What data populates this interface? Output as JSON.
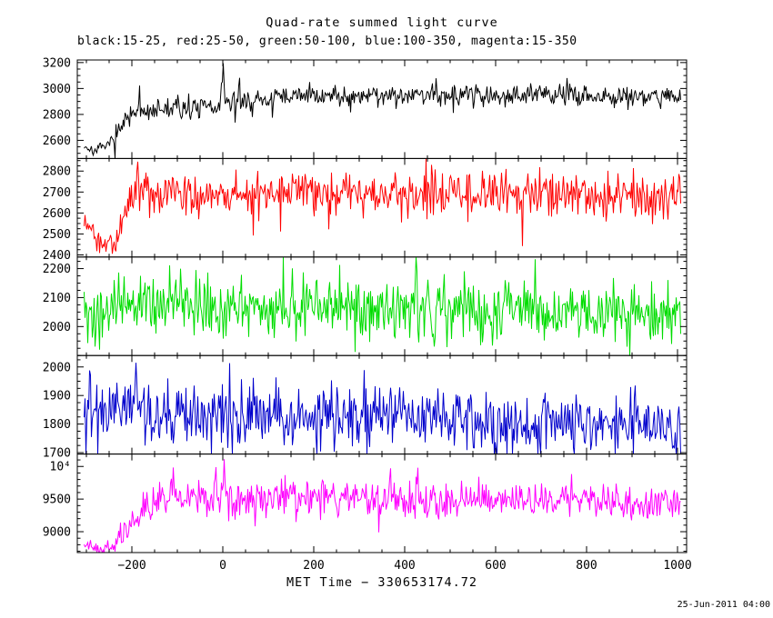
{
  "footer": {
    "timestamp": "25-Jun-2011 04:00"
  },
  "chart_data": {
    "type": "line",
    "title": "Quad-rate summed light curve",
    "subtitle": "black:15-25, red:25-50, green:50-100, blue:100-350, magenta:15-350",
    "xlabel": "MET Time − 330653174.72",
    "xlim": [
      -320,
      1020
    ],
    "xticks": [
      -200,
      0,
      200,
      400,
      600,
      800,
      1000
    ],
    "xtick_labels": [
      "−200",
      "0",
      "200",
      "400",
      "600",
      "800",
      "1000"
    ],
    "x_minor_step": 50,
    "x_data_range": [
      -305,
      1008
    ],
    "dt": 2,
    "grid": false,
    "legend_position": "subtitle-line",
    "panels": [
      {
        "id": "black",
        "name": "black:15-25",
        "color": "#000000",
        "ylim": [
          2460,
          3220
        ],
        "yticks": [
          [
            2600,
            "2600"
          ],
          [
            2800,
            "2800"
          ],
          [
            3000,
            "3000"
          ],
          [
            3200,
            "3200"
          ]
        ],
        "y_minor_step": 50,
        "sigma": 40,
        "pre_end": -240,
        "pre_scale": 0.45,
        "seed": 7,
        "keyframes": [
          [
            -305,
            2555
          ],
          [
            -285,
            2520
          ],
          [
            -270,
            2540
          ],
          [
            -255,
            2560
          ],
          [
            -240,
            2620
          ],
          [
            -225,
            2700
          ],
          [
            -210,
            2760
          ],
          [
            -195,
            2800
          ],
          [
            -175,
            2830
          ],
          [
            -150,
            2840
          ],
          [
            -100,
            2850
          ],
          [
            -50,
            2845
          ],
          [
            0,
            2875
          ],
          [
            50,
            2900
          ],
          [
            150,
            2940
          ],
          [
            300,
            2950
          ],
          [
            500,
            2955
          ],
          [
            700,
            2950
          ],
          [
            900,
            2945
          ],
          [
            1008,
            2940
          ]
        ],
        "spikes": [
          [
            0,
            3195
          ],
          [
            -4,
            3040
          ]
        ]
      },
      {
        "id": "red",
        "name": "red:25-50",
        "color": "#ff0000",
        "ylim": [
          2390,
          2860
        ],
        "yticks": [
          [
            2400,
            "2400"
          ],
          [
            2500,
            "2500"
          ],
          [
            2600,
            "2600"
          ],
          [
            2700,
            "2700"
          ],
          [
            2800,
            "2800"
          ]
        ],
        "y_minor_step": 25,
        "sigma": 52,
        "pre_end": -225,
        "pre_scale": 0.5,
        "seed": 21,
        "keyframes": [
          [
            -305,
            2555
          ],
          [
            -290,
            2530
          ],
          [
            -275,
            2480
          ],
          [
            -260,
            2440
          ],
          [
            -250,
            2470
          ],
          [
            -240,
            2440
          ],
          [
            -230,
            2480
          ],
          [
            -220,
            2560
          ],
          [
            -205,
            2640
          ],
          [
            -190,
            2700
          ],
          [
            -170,
            2720
          ],
          [
            -140,
            2700
          ],
          [
            -80,
            2690
          ],
          [
            0,
            2685
          ],
          [
            200,
            2690
          ],
          [
            400,
            2685
          ],
          [
            600,
            2690
          ],
          [
            800,
            2680
          ],
          [
            1008,
            2670
          ]
        ],
        "spikes": [
          [
            -188,
            2845
          ]
        ]
      },
      {
        "id": "green",
        "name": "green:50-100",
        "color": "#00dd00",
        "ylim": [
          1900,
          2240
        ],
        "yticks": [
          [
            2000,
            "2000"
          ],
          [
            2100,
            "2100"
          ],
          [
            2200,
            "2200"
          ]
        ],
        "y_minor_step": 25,
        "sigma": 52,
        "seed": 33,
        "keyframes": [
          [
            -305,
            2030
          ],
          [
            -285,
            2000
          ],
          [
            -265,
            2040
          ],
          [
            -240,
            2070
          ],
          [
            -200,
            2075
          ],
          [
            -150,
            2070
          ],
          [
            0,
            2065
          ],
          [
            300,
            2070
          ],
          [
            500,
            2060
          ],
          [
            700,
            2055
          ],
          [
            850,
            2045
          ],
          [
            1008,
            2055
          ]
        ],
        "spikes": []
      },
      {
        "id": "blue",
        "name": "blue:100-350",
        "color": "#0000cc",
        "ylim": [
          1695,
          2040
        ],
        "yticks": [
          [
            1700,
            "1700"
          ],
          [
            1800,
            "1800"
          ],
          [
            1900,
            "1900"
          ],
          [
            2000,
            "2000"
          ]
        ],
        "y_minor_step": 25,
        "sigma": 52,
        "seed": 47,
        "keyframes": [
          [
            -305,
            1855
          ],
          [
            -270,
            1860
          ],
          [
            -240,
            1850
          ],
          [
            -200,
            1855
          ],
          [
            -150,
            1845
          ],
          [
            -100,
            1840
          ],
          [
            0,
            1835
          ],
          [
            150,
            1830
          ],
          [
            300,
            1820
          ],
          [
            450,
            1815
          ],
          [
            600,
            1805
          ],
          [
            750,
            1800
          ],
          [
            900,
            1790
          ],
          [
            1008,
            1785
          ]
        ],
        "spikes": [
          [
            -192,
            2015
          ]
        ]
      },
      {
        "id": "magenta",
        "name": "magenta:15-350",
        "color": "#ff00ff",
        "ylim": [
          8680,
          10190
        ],
        "yticks": [
          [
            9000,
            "9000"
          ],
          [
            9500,
            "9500"
          ],
          [
            10000,
            "10⁴"
          ]
        ],
        "y_minor_step": 100,
        "sigma": 130,
        "pre_end": -230,
        "pre_scale": 0.45,
        "seed": 59,
        "keyframes": [
          [
            -305,
            8830
          ],
          [
            -290,
            8780
          ],
          [
            -275,
            8730
          ],
          [
            -260,
            8720
          ],
          [
            -248,
            8760
          ],
          [
            -238,
            8820
          ],
          [
            -228,
            8900
          ],
          [
            -215,
            9000
          ],
          [
            -200,
            9130
          ],
          [
            -185,
            9300
          ],
          [
            -170,
            9420
          ],
          [
            -150,
            9480
          ],
          [
            -120,
            9510
          ],
          [
            -80,
            9500
          ],
          [
            0,
            9490
          ],
          [
            150,
            9520
          ],
          [
            300,
            9500
          ],
          [
            500,
            9490
          ],
          [
            700,
            9480
          ],
          [
            850,
            9460
          ],
          [
            1008,
            9440
          ]
        ],
        "spikes": [
          [
            2,
            10110
          ]
        ]
      }
    ]
  }
}
